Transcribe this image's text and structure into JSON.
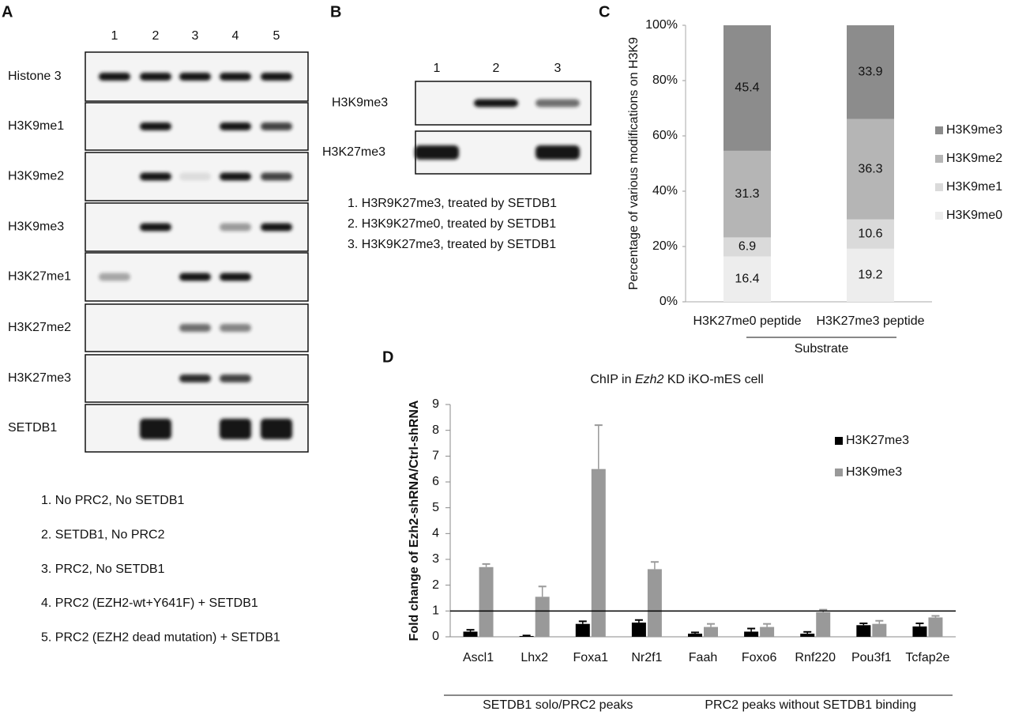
{
  "panels": {
    "a": {
      "letter": "A",
      "lanes": [
        "1",
        "2",
        "3",
        "4",
        "5"
      ],
      "rows": [
        "Histone 3",
        "H3K9me1",
        "H3K9me2",
        "H3K9me3",
        "H3K27me1",
        "H3K27me2",
        "H3K27me3",
        "SETDB1"
      ],
      "legend": [
        "1. No PRC2, No SETDB1",
        "2. SETDB1, No PRC2",
        "3. PRC2, No SETDB1",
        "4. PRC2 (EZH2-wt+Y641F) + SETDB1",
        "5. PRC2 (EZH2 dead mutation) + SETDB1"
      ]
    },
    "b": {
      "letter": "B",
      "lanes": [
        "1",
        "2",
        "3"
      ],
      "rows": [
        "H3K9me3",
        "H3K27me3"
      ],
      "legend": [
        "1. H3R9K27me3, treated by SETDB1",
        "2. H3K9K27me0, treated by SETDB1",
        "3. H3K9K27me3, treated by SETDB1"
      ]
    }
  },
  "chart_data": [
    {
      "type": "stacked_bar",
      "letter": "C",
      "y_label": "Percentage of various modifications on H3K9",
      "x_label": "Substrate",
      "categories": [
        "H3K27me0 peptide",
        "H3K27me3 peptide"
      ],
      "series": [
        {
          "name": "H3K9me3",
          "color": "#8c8c8c",
          "values": [
            45.4,
            33.9
          ]
        },
        {
          "name": "H3K9me2",
          "color": "#b5b5b5",
          "values": [
            31.3,
            36.3
          ]
        },
        {
          "name": "H3K9me1",
          "color": "#dadada",
          "values": [
            6.9,
            10.6
          ]
        },
        {
          "name": "H3K9me0",
          "color": "#ededed",
          "values": [
            16.4,
            19.2
          ]
        }
      ],
      "ylim": [
        0,
        100
      ],
      "yticks": [
        {
          "value": 0,
          "label": "0%"
        },
        {
          "value": 20,
          "label": "20%"
        },
        {
          "value": 40,
          "label": "40%"
        },
        {
          "value": 60,
          "label": "60%"
        },
        {
          "value": 80,
          "label": "80%"
        },
        {
          "value": 100,
          "label": "100%"
        }
      ]
    },
    {
      "type": "bar",
      "letter": "D",
      "title_parts": [
        "ChIP in ",
        "Ezh2",
        " KD iKO-mES cell"
      ],
      "y_label": "Fold change of Ezh2-shRNA/Ctrl-shRNA",
      "categories": [
        "Ascl1",
        "Lhx2",
        "Foxa1",
        "Nr2f1",
        "Faah",
        "Foxo6",
        "Rnf220",
        "Pou3f1",
        "Tcfap2e"
      ],
      "series": [
        {
          "name": "H3K27me3",
          "color": "#000000",
          "values": [
            0.2,
            0.03,
            0.5,
            0.55,
            0.12,
            0.2,
            0.12,
            0.45,
            0.4
          ],
          "errors": [
            0.07,
            0.02,
            0.1,
            0.1,
            0.05,
            0.12,
            0.07,
            0.07,
            0.12
          ]
        },
        {
          "name": "H3K9me3",
          "color": "#999999",
          "values": [
            2.7,
            1.55,
            6.5,
            2.62,
            0.38,
            0.38,
            0.95,
            0.5,
            0.75
          ],
          "errors": [
            0.12,
            0.4,
            1.7,
            0.28,
            0.12,
            0.12,
            0.1,
            0.12,
            0.06
          ]
        }
      ],
      "reference_line": 1,
      "groups": [
        {
          "label": "SETDB1 solo/PRC2 peaks",
          "members": [
            "Ascl1",
            "Lhx2",
            "Foxa1",
            "Nr2f1"
          ]
        },
        {
          "label": "PRC2 peaks without SETDB1 binding",
          "members": [
            "Faah",
            "Foxo6",
            "Rnf220",
            "Pou3f1",
            "Tcfap2e"
          ]
        }
      ],
      "ylim": [
        0,
        9
      ],
      "yticks": [
        0,
        1,
        2,
        3,
        4,
        5,
        6,
        7,
        8,
        9
      ]
    }
  ]
}
